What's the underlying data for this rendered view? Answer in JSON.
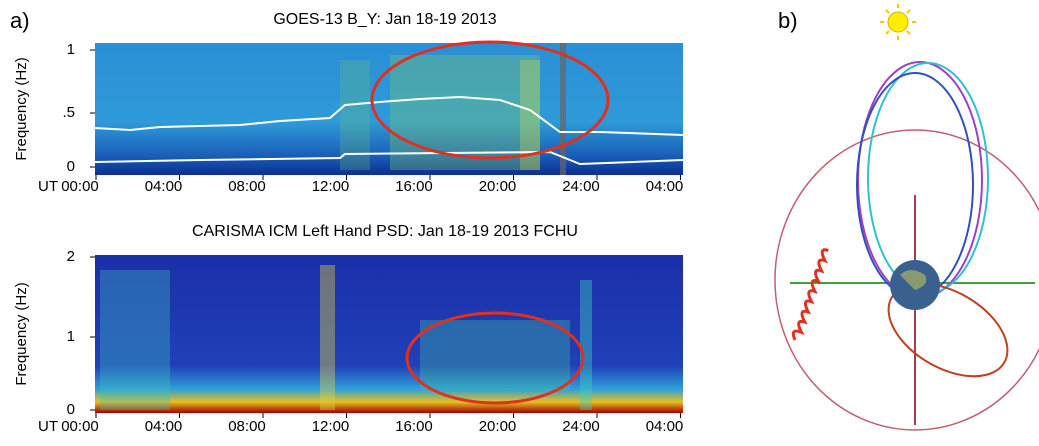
{
  "panel_a": {
    "label": "a)",
    "top": {
      "title": "GOES-13 B_Y: Jan 18-19 2013",
      "ylabel": "Frequency (Hz)",
      "yticks": [
        "1",
        ".5",
        "0"
      ],
      "xprefix": "UT",
      "xticks": [
        "00:00",
        "04:00",
        "08:00",
        "12:00",
        "16:00",
        "20:00",
        "24:00",
        "04:00"
      ]
    },
    "bottom": {
      "title": "CARISMA ICM Left Hand PSD: Jan 18-19 2013 FCHU",
      "ylabel": "Frequency (Hz)",
      "yticks": [
        "2",
        "1",
        "0"
      ],
      "xprefix": "UT",
      "xticks": [
        "00:00",
        "04:00",
        "08:00",
        "12:00",
        "16:00",
        "20:00",
        "24:00",
        "04:00"
      ]
    }
  },
  "panel_b": {
    "label": "b)"
  }
}
